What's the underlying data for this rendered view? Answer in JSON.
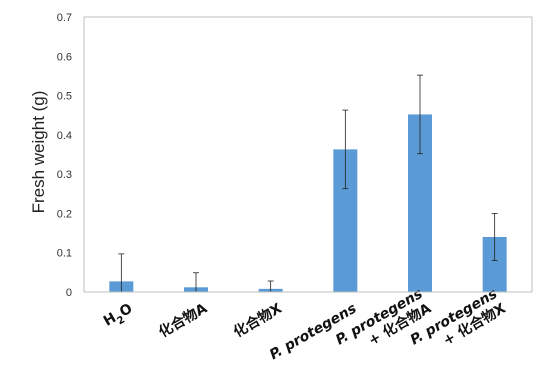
{
  "chart_data": {
    "type": "bar",
    "ylabel": "Fresh weight (g)",
    "ylim": [
      0,
      0.7
    ],
    "yticks": [
      "0",
      "0.1",
      "0.2",
      "0.3",
      "0.4",
      "0.5",
      "0.6",
      "0.7"
    ],
    "grid": false,
    "bar_color": "#5b9bd5",
    "categories": [
      {
        "lines": [
          {
            "text": "H",
            "sub": "2",
            "tail": "O"
          }
        ]
      },
      {
        "lines": [
          {
            "text": "化合物A"
          }
        ]
      },
      {
        "lines": [
          {
            "text": "化合物X"
          }
        ]
      },
      {
        "lines": [
          {
            "text": "P. protegens",
            "italic": true
          }
        ]
      },
      {
        "lines": [
          {
            "text": "P. protegens",
            "italic": true
          },
          {
            "text": "+ 化合物A"
          }
        ]
      },
      {
        "lines": [
          {
            "text": "P. protegens",
            "italic": true
          },
          {
            "text": "+ 化合物X"
          }
        ]
      }
    ],
    "values": [
      0.027,
      0.012,
      0.008,
      0.363,
      0.452,
      0.14
    ],
    "errors": [
      0.07,
      0.037,
      0.02,
      0.1,
      0.1,
      0.06
    ]
  }
}
